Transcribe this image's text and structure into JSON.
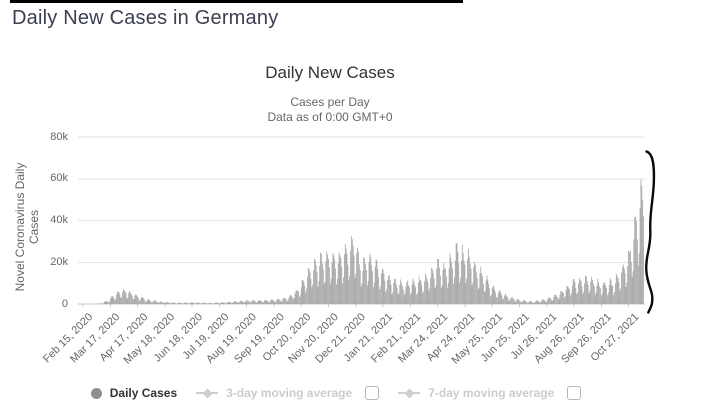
{
  "page": {
    "heading": "Daily New Cases in Germany",
    "heading_color": "#3c3f50"
  },
  "chart": {
    "title": "Daily New Cases",
    "subtitle_line1": "Cases per Day",
    "subtitle_line2": "Data as of 0:00 GMT+0",
    "y_axis_title": "Novel Coronavirus Daily Cases"
  },
  "legend": {
    "items": [
      {
        "label": "Daily Cases",
        "enabled": true,
        "marker": "filled-circle",
        "marker_color": "#8f8f8f"
      },
      {
        "label": "3-day moving average",
        "enabled": false,
        "marker": "line-diamond",
        "marker_color": "#cfcfcf",
        "checkbox_checked": false
      },
      {
        "label": "7-day moving average",
        "enabled": false,
        "marker": "line-diamond",
        "marker_color": "#cfcfcf",
        "checkbox_checked": false
      }
    ]
  },
  "chart_data": {
    "type": "bar",
    "title": "Daily New Cases",
    "subtitle": [
      "Cases per Day",
      "Data as of 0:00 GMT+0"
    ],
    "xlabel": "",
    "ylabel": "Novel Coronavirus Daily Cases",
    "ylim": [
      0,
      80000
    ],
    "grid": true,
    "bar_color": "#a1a1a1",
    "grid_color": "#e6e6e6",
    "axis_line_color": "#c9c9c9",
    "tick_text_color": "#666666",
    "yticks": [
      {
        "label": "0",
        "value": 0
      },
      {
        "label": "20k",
        "value": 20000
      },
      {
        "label": "40k",
        "value": 40000
      },
      {
        "label": "60k",
        "value": 60000
      },
      {
        "label": "80k",
        "value": 80000
      }
    ],
    "x_tick_labels": [
      "Feb 15, 2020",
      "Mar 17, 2020",
      "Apr 17, 2020",
      "May 18, 2020",
      "Jun 18, 2020",
      "Jul 19, 2020",
      "Aug 19, 2020",
      "Sep 19, 2020",
      "Oct 20, 2020",
      "Nov 20, 2020",
      "Dec 21, 2020",
      "Jan 21, 2021",
      "Feb 21, 2021",
      "Mar 24, 2021",
      "Apr 24, 2021",
      "May 25, 2021",
      "Jun 25, 2021",
      "Jul 26, 2021",
      "Aug 26, 2021",
      "Sep 26, 2021",
      "Oct 27, 2021"
    ],
    "x_tick_day_offsets": [
      0,
      31,
      62,
      93,
      124,
      155,
      186,
      217,
      248,
      279,
      310,
      341,
      372,
      403,
      434,
      465,
      496,
      527,
      558,
      589,
      620
    ],
    "start_date": "Feb 15, 2020",
    "start_weekday": "Sat",
    "end_day_offset": 637,
    "series": [
      {
        "name": "Daily Cases",
        "description": "Daily new COVID-19 cases, Germany; values estimated from chart as smoothed envelope control points [day_offset, cases] modulated by day-of-week reporting factors",
        "envelope_points": [
          [
            0,
            0
          ],
          [
            8,
            5
          ],
          [
            15,
            60
          ],
          [
            22,
            350
          ],
          [
            29,
            1600
          ],
          [
            36,
            3900
          ],
          [
            43,
            5200
          ],
          [
            49,
            5200
          ],
          [
            55,
            4400
          ],
          [
            65,
            2700
          ],
          [
            76,
            1500
          ],
          [
            90,
            800
          ],
          [
            107,
            480
          ],
          [
            126,
            550
          ],
          [
            146,
            400
          ],
          [
            168,
            820
          ],
          [
            187,
            1350
          ],
          [
            208,
            1450
          ],
          [
            223,
            1850
          ],
          [
            233,
            2600
          ],
          [
            243,
            5200
          ],
          [
            253,
            10500
          ],
          [
            260,
            14500
          ],
          [
            269,
            17000
          ],
          [
            279,
            18200
          ],
          [
            290,
            18600
          ],
          [
            300,
            21500
          ],
          [
            307,
            24500
          ],
          [
            311,
            21500
          ],
          [
            314,
            17500
          ],
          [
            318,
            15500
          ],
          [
            322,
            18500
          ],
          [
            330,
            16500
          ],
          [
            340,
            12800
          ],
          [
            352,
            9200
          ],
          [
            365,
            8000
          ],
          [
            380,
            8600
          ],
          [
            394,
            11500
          ],
          [
            404,
            15500
          ],
          [
            411,
            14200
          ],
          [
            415,
            15800
          ],
          [
            425,
            21500
          ],
          [
            432,
            20200
          ],
          [
            438,
            18500
          ],
          [
            450,
            13200
          ],
          [
            465,
            6800
          ],
          [
            481,
            3200
          ],
          [
            496,
            1500
          ],
          [
            511,
            950
          ],
          [
            527,
            1900
          ],
          [
            542,
            4200
          ],
          [
            558,
            8800
          ],
          [
            573,
            9800
          ],
          [
            589,
            7800
          ],
          [
            603,
            8800
          ],
          [
            613,
            13500
          ],
          [
            620,
            18500
          ],
          [
            625,
            26000
          ],
          [
            629,
            34000
          ],
          [
            632,
            40000
          ],
          [
            634,
            46000
          ],
          [
            637,
            44000
          ]
        ],
        "weekly_factors": [
          0.92,
          0.52,
          0.63,
          1.08,
          1.38,
          1.3,
          1.12
        ],
        "peak_daily_value_approx": 64000
      }
    ],
    "disabled_series": [
      "3-day moving average",
      "7-day moving average"
    ],
    "legend_position": "bottom",
    "annotation": {
      "type": "hand-drawn-vertical-curve",
      "color": "#0a0a0a",
      "location": "right of last bars, spanning plot height"
    }
  }
}
